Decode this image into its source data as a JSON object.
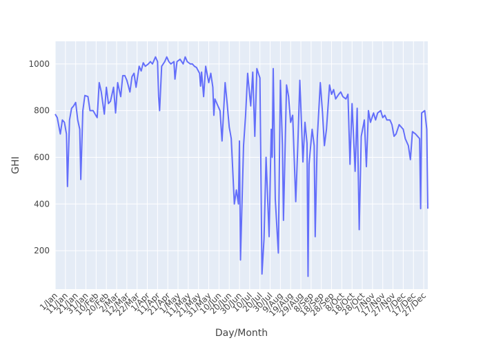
{
  "chart_data": {
    "type": "line",
    "x_label": "Day/Month",
    "y_label": "GHI",
    "x": [
      0,
      2,
      5,
      7,
      9,
      11,
      12,
      14,
      16,
      18,
      20,
      22,
      24,
      25,
      27,
      29,
      32,
      34,
      37,
      41,
      43,
      45,
      48,
      50,
      52,
      54,
      57,
      59,
      61,
      64,
      66,
      68,
      70,
      73,
      75,
      77,
      79,
      82,
      84,
      86,
      88,
      91,
      93,
      95,
      98,
      100,
      101,
      102,
      104,
      107,
      109,
      111,
      113,
      116,
      117,
      119,
      122,
      125,
      127,
      129,
      132,
      134,
      136,
      138,
      141,
      142,
      143,
      145,
      147,
      150,
      152,
      154,
      155,
      156,
      159,
      161,
      163,
      166,
      168,
      170,
      172,
      175,
      177,
      179,
      180,
      181,
      184,
      186,
      188,
      191,
      193,
      195,
      197,
      200,
      202,
      204,
      206,
      209,
      211,
      212,
      213,
      215,
      218,
      220,
      222,
      223,
      226,
      228,
      230,
      232,
      235,
      237,
      239,
      242,
      244,
      246,
      247,
      248,
      251,
      253,
      254,
      256,
      259,
      261,
      263,
      265,
      268,
      270,
      272,
      274,
      277,
      279,
      281,
      284,
      286,
      288,
      290,
      293,
      295,
      297,
      299,
      302,
      304,
      306,
      308,
      311,
      313,
      315,
      318,
      320,
      322,
      324,
      327,
      329,
      331,
      333,
      336,
      338,
      340,
      342,
      345,
      347,
      349,
      352,
      354,
      356,
      357,
      358,
      361,
      363,
      364
    ],
    "series": [
      {
        "name": "GHI",
        "color": "#636efa",
        "values": [
          785,
          770,
          700,
          760,
          750,
          700,
          475,
          760,
          810,
          820,
          835,
          760,
          720,
          505,
          800,
          865,
          860,
          800,
          800,
          770,
          920,
          880,
          785,
          900,
          830,
          840,
          900,
          790,
          920,
          860,
          950,
          950,
          930,
          880,
          945,
          960,
          900,
          990,
          970,
          1005,
          990,
          1000,
          1010,
          1000,
          1030,
          1010,
          860,
          800,
          990,
          1010,
          1030,
          1010,
          1000,
          1010,
          935,
          1010,
          1020,
          1000,
          1030,
          1010,
          1000,
          1000,
          990,
          985,
          960,
          905,
          965,
          860,
          990,
          920,
          960,
          900,
          780,
          850,
          820,
          800,
          670,
          920,
          830,
          730,
          680,
          400,
          460,
          400,
          670,
          160,
          650,
          780,
          960,
          820,
          965,
          690,
          980,
          940,
          100,
          250,
          600,
          260,
          720,
          600,
          980,
          420,
          190,
          930,
          650,
          330,
          910,
          860,
          750,
          780,
          410,
          650,
          930,
          580,
          750,
          660,
          90,
          570,
          720,
          650,
          260,
          680,
          920,
          800,
          650,
          720,
          910,
          870,
          890,
          850,
          870,
          880,
          860,
          850,
          870,
          570,
          830,
          540,
          810,
          290,
          690,
          760,
          560,
          800,
          750,
          790,
          760,
          790,
          800,
          770,
          780,
          760,
          760,
          740,
          690,
          700,
          740,
          730,
          720,
          680,
          650,
          590,
          710,
          700,
          690,
          680,
          380,
          790,
          800,
          720,
          380
        ]
      }
    ],
    "xlim": [
      0,
      364
    ],
    "xticks": [
      {
        "value": 0,
        "label": "1/Jan"
      },
      {
        "value": 10,
        "label": "11/Jan"
      },
      {
        "value": 20,
        "label": "21/Jan"
      },
      {
        "value": 30,
        "label": "31/Jan"
      },
      {
        "value": 40,
        "label": "10/Feb"
      },
      {
        "value": 50,
        "label": "20/Feb"
      },
      {
        "value": 60,
        "label": "2/Mar"
      },
      {
        "value": 70,
        "label": "12/Mar"
      },
      {
        "value": 80,
        "label": "22/Mar"
      },
      {
        "value": 90,
        "label": "1/Apr"
      },
      {
        "value": 100,
        "label": "11/Apr"
      },
      {
        "value": 110,
        "label": "21/Apr"
      },
      {
        "value": 120,
        "label": "1/May"
      },
      {
        "value": 130,
        "label": "11/May"
      },
      {
        "value": 140,
        "label": "21/May"
      },
      {
        "value": 150,
        "label": "31/May"
      },
      {
        "value": 160,
        "label": "10/Jun"
      },
      {
        "value": 170,
        "label": "20/Jun"
      },
      {
        "value": 180,
        "label": "30/Jun"
      },
      {
        "value": 190,
        "label": "10/Jul"
      },
      {
        "value": 200,
        "label": "20/Jul"
      },
      {
        "value": 210,
        "label": "30/Jul"
      },
      {
        "value": 220,
        "label": "9/Aug"
      },
      {
        "value": 230,
        "label": "19/Aug"
      },
      {
        "value": 240,
        "label": "29/Aug"
      },
      {
        "value": 250,
        "label": "8/Sep"
      },
      {
        "value": 260,
        "label": "18/Sep"
      },
      {
        "value": 270,
        "label": "28/Sep"
      },
      {
        "value": 280,
        "label": "8/Oct"
      },
      {
        "value": 290,
        "label": "18/Oct"
      },
      {
        "value": 300,
        "label": "28/Oct"
      },
      {
        "value": 310,
        "label": "7/Nov"
      },
      {
        "value": 320,
        "label": "17/Nov"
      },
      {
        "value": 330,
        "label": "27/Nov"
      },
      {
        "value": 340,
        "label": "7/Dec"
      },
      {
        "value": 350,
        "label": "17/Dec"
      },
      {
        "value": 360,
        "label": "27/Dec"
      }
    ],
    "ylim": [
      35,
      1097
    ],
    "yticks": [
      200,
      400,
      600,
      800,
      1000
    ],
    "grid": true
  }
}
